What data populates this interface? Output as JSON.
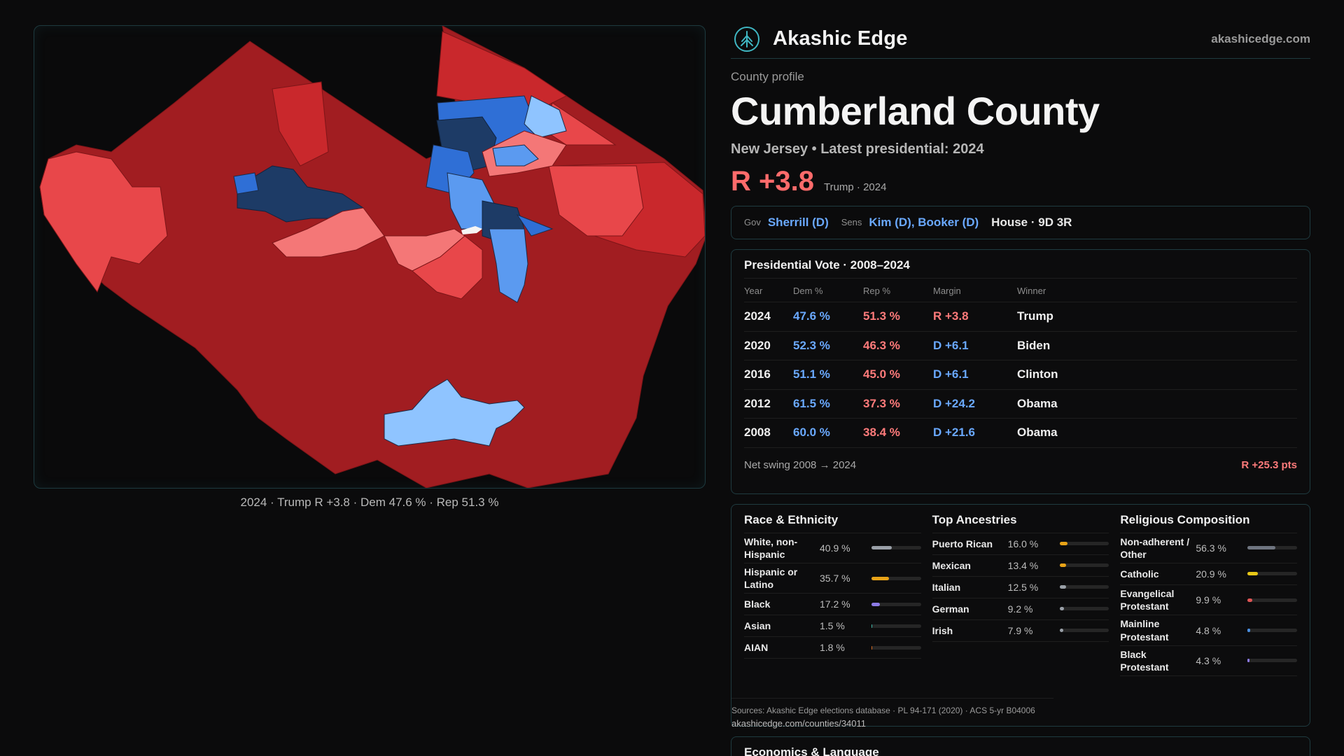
{
  "brand": {
    "name": "Akashic Edge",
    "url": "akashicedge.com",
    "logo_icon": "tree-of-life-icon",
    "accent": "#3fb6c2"
  },
  "profile": {
    "eyebrow": "County profile",
    "title": "Cumberland County",
    "subtitle": "New Jersey • Latest presidential: 2024",
    "margin": "R +3.8",
    "margin_note": "Trump · 2024",
    "margin_color": "#ff6b6b"
  },
  "officials": {
    "gov_label": "Gov",
    "gov": "Sherrill (D)",
    "sens_label": "Sens",
    "sens": "Kim (D), Booker (D)",
    "house": "House · 9D 3R"
  },
  "presidential": {
    "title": "Presidential Vote · 2008–2024",
    "headers": [
      "Year",
      "Dem %",
      "Rep %",
      "Margin",
      "Winner"
    ],
    "rows": [
      {
        "year": "2024",
        "dem": "47.6 %",
        "rep": "51.3 %",
        "margin": "R +3.8",
        "party": "R",
        "winner": "Trump"
      },
      {
        "year": "2020",
        "dem": "52.3 %",
        "rep": "46.3 %",
        "margin": "D +6.1",
        "party": "D",
        "winner": "Biden"
      },
      {
        "year": "2016",
        "dem": "51.1 %",
        "rep": "45.0 %",
        "margin": "D +6.1",
        "party": "D",
        "winner": "Clinton"
      },
      {
        "year": "2012",
        "dem": "61.5 %",
        "rep": "37.3 %",
        "margin": "D +24.2",
        "party": "D",
        "winner": "Obama"
      },
      {
        "year": "2008",
        "dem": "60.0 %",
        "rep": "38.4 %",
        "margin": "D +21.6",
        "party": "D",
        "winner": "Obama"
      }
    ],
    "swing_label": "Net swing 2008 → 2024",
    "swing_value": "R +25.3 pts"
  },
  "demographics": {
    "race": {
      "title": "Race & Ethnicity",
      "items": [
        {
          "label": "White, non-Hispanic",
          "value": "40.9 %",
          "pct": 40.9,
          "color": "#9aa0a8"
        },
        {
          "label": "Hispanic or Latino",
          "value": "35.7 %",
          "pct": 35.7,
          "color": "#e8a317"
        },
        {
          "label": "Black",
          "value": "17.2 %",
          "pct": 17.2,
          "color": "#8c7ae6"
        },
        {
          "label": "Asian",
          "value": "1.5 %",
          "pct": 1.5,
          "color": "#3fb6a8"
        },
        {
          "label": "AIAN",
          "value": "1.8 %",
          "pct": 1.8,
          "color": "#d2691e"
        }
      ]
    },
    "ancestry": {
      "title": "Top Ancestries",
      "items": [
        {
          "label": "Puerto Rican",
          "value": "16.0 %",
          "pct": 16.0,
          "color": "#e8a317"
        },
        {
          "label": "Mexican",
          "value": "13.4 %",
          "pct": 13.4,
          "color": "#e8a317"
        },
        {
          "label": "Italian",
          "value": "12.5 %",
          "pct": 12.5,
          "color": "#9aa0a8"
        },
        {
          "label": "German",
          "value": "9.2 %",
          "pct": 9.2,
          "color": "#9aa0a8"
        },
        {
          "label": "Irish",
          "value": "7.9 %",
          "pct": 7.9,
          "color": "#9aa0a8"
        }
      ]
    },
    "religion": {
      "title": "Religious Composition",
      "items": [
        {
          "label": "Non-adherent / Other",
          "value": "56.3 %",
          "pct": 56.3,
          "color": "#6f7580"
        },
        {
          "label": "Catholic",
          "value": "20.9 %",
          "pct": 20.9,
          "color": "#e8c817"
        },
        {
          "label": "Evangelical Protestant",
          "value": "9.9 %",
          "pct": 9.9,
          "color": "#e05555"
        },
        {
          "label": "Mainline Protestant",
          "value": "4.8 %",
          "pct": 4.8,
          "color": "#4a8fe0"
        },
        {
          "label": "Black Protestant",
          "value": "4.3 %",
          "pct": 4.3,
          "color": "#8c7ae6"
        }
      ]
    },
    "sources": "Sources: Akashic Edge elections database · PL 94-171 (2020) · ACS 5-yr B04006",
    "source_url": "akashicedge.com/counties/34011"
  },
  "economics": {
    "title": "Economics & Language"
  },
  "map": {
    "caption": "2024 · Trump R +3.8 · Dem 47.6 % · Rep 51.3 %",
    "colors": {
      "safe_r": "#a11d21",
      "likely_r": "#c9282c",
      "lean_r": "#e8474a",
      "tilt_r": "#f47777",
      "safe_d": "#1d3b66",
      "likely_d": "#2f6fd6",
      "lean_d": "#5b9af0",
      "tilt_d": "#8fc4ff"
    }
  }
}
